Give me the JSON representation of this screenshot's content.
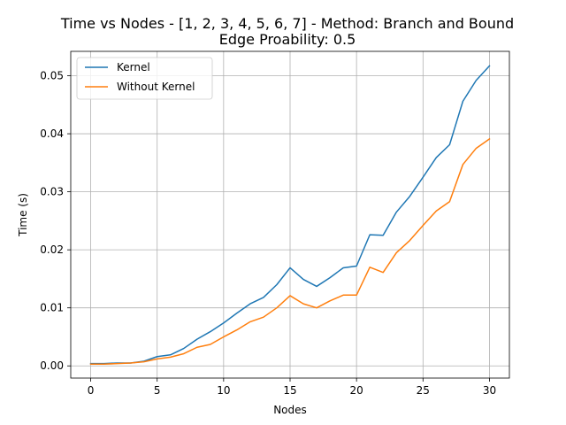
{
  "chart_data": {
    "type": "line",
    "title": "Time vs Nodes - [1, 2, 3, 4, 5, 6, 7] - Method: Branch and Bound",
    "subtitle": "Edge Proability: 0.5",
    "xlabel": "Nodes",
    "ylabel": "Time (s)",
    "xlim": [
      -1.5,
      31.5
    ],
    "ylim": [
      -0.0021,
      0.0542
    ],
    "xticks": [
      0,
      5,
      10,
      15,
      20,
      25,
      30
    ],
    "xtick_labels": [
      "0",
      "5",
      "10",
      "15",
      "20",
      "25",
      "30"
    ],
    "yticks": [
      0.0,
      0.01,
      0.02,
      0.03,
      0.04,
      0.05
    ],
    "ytick_labels": [
      "0.00",
      "0.01",
      "0.02",
      "0.03",
      "0.04",
      "0.05"
    ],
    "grid": true,
    "legend_position": "top-left",
    "x": [
      0,
      1,
      2,
      3,
      4,
      5,
      6,
      7,
      8,
      9,
      10,
      11,
      12,
      13,
      14,
      15,
      16,
      17,
      18,
      19,
      20,
      21,
      22,
      23,
      24,
      25,
      26,
      27,
      28,
      29,
      30
    ],
    "series": [
      {
        "name": "Kernel",
        "color": "#1f77b4",
        "values": [
          0.0004,
          0.0004,
          0.0005,
          0.0005,
          0.0008,
          0.0016,
          0.0019,
          0.003,
          0.0046,
          0.0059,
          0.0074,
          0.0091,
          0.0107,
          0.0118,
          0.014,
          0.0169,
          0.0149,
          0.0137,
          0.0152,
          0.0169,
          0.0172,
          0.0226,
          0.0225,
          0.0265,
          0.0292,
          0.0325,
          0.0359,
          0.0381,
          0.0456,
          0.0492,
          0.0517
        ]
      },
      {
        "name": "Without Kernel",
        "color": "#ff7f0e",
        "values": [
          0.0003,
          0.0003,
          0.0004,
          0.0005,
          0.0007,
          0.0012,
          0.0015,
          0.0021,
          0.0032,
          0.0037,
          0.005,
          0.0062,
          0.0076,
          0.0084,
          0.01,
          0.0121,
          0.0107,
          0.01,
          0.0112,
          0.0122,
          0.0122,
          0.017,
          0.0161,
          0.0195,
          0.0216,
          0.0242,
          0.0267,
          0.0283,
          0.0347,
          0.0375,
          0.0391
        ]
      }
    ]
  }
}
